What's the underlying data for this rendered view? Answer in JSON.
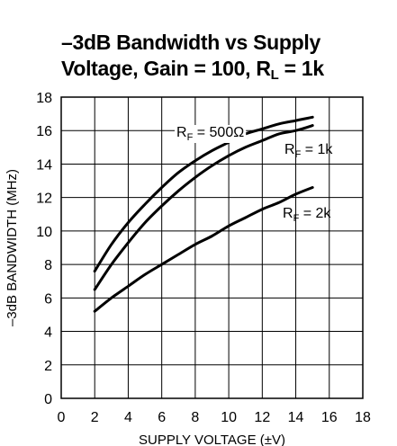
{
  "title": {
    "line1": "–3dB Bandwidth vs Supply",
    "line2_prefix": "Voltage, Gain = 100, R",
    "line2_sub": "L",
    "line2_suffix": " = 1k"
  },
  "chart_data": {
    "type": "line",
    "title": "–3dB Bandwidth vs Supply Voltage, Gain = 100, RL = 1k",
    "xlabel": "SUPPLY VOLTAGE (±V)",
    "ylabel": "–3dB BANDWIDTH (MHz)",
    "xlim": [
      0,
      18
    ],
    "ylim": [
      0,
      18
    ],
    "xticks": [
      0,
      2,
      4,
      6,
      8,
      10,
      12,
      14,
      16,
      18
    ],
    "yticks": [
      0,
      2,
      4,
      6,
      8,
      10,
      12,
      14,
      16,
      18
    ],
    "grid": true,
    "series": [
      {
        "name": "RF = 500Ω",
        "label_base": "R",
        "label_sub": "F",
        "label_rest": " = 500Ω",
        "x": [
          2,
          3,
          4,
          5,
          6,
          7,
          8,
          9,
          10,
          11,
          12,
          13,
          14,
          15
        ],
        "y": [
          7.6,
          9.2,
          10.5,
          11.6,
          12.6,
          13.5,
          14.2,
          14.8,
          15.3,
          15.8,
          16.1,
          16.4,
          16.6,
          16.8
        ]
      },
      {
        "name": "RF = 1k",
        "label_base": "R",
        "label_sub": "F",
        "label_rest": " = 1k",
        "x": [
          2,
          3,
          4,
          5,
          6,
          7,
          8,
          9,
          10,
          11,
          12,
          13,
          14,
          15
        ],
        "y": [
          6.5,
          8.0,
          9.3,
          10.5,
          11.5,
          12.4,
          13.2,
          13.9,
          14.5,
          15.0,
          15.4,
          15.8,
          16.0,
          16.3
        ]
      },
      {
        "name": "RF = 2k",
        "label_base": "R",
        "label_sub": "F",
        "label_rest": " = 2k",
        "x": [
          2,
          3,
          4,
          5,
          6,
          7,
          8,
          9,
          10,
          11,
          12,
          13,
          14,
          15
        ],
        "y": [
          5.2,
          6.0,
          6.7,
          7.4,
          8.0,
          8.6,
          9.2,
          9.7,
          10.3,
          10.8,
          11.3,
          11.7,
          12.2,
          12.6
        ]
      }
    ]
  }
}
